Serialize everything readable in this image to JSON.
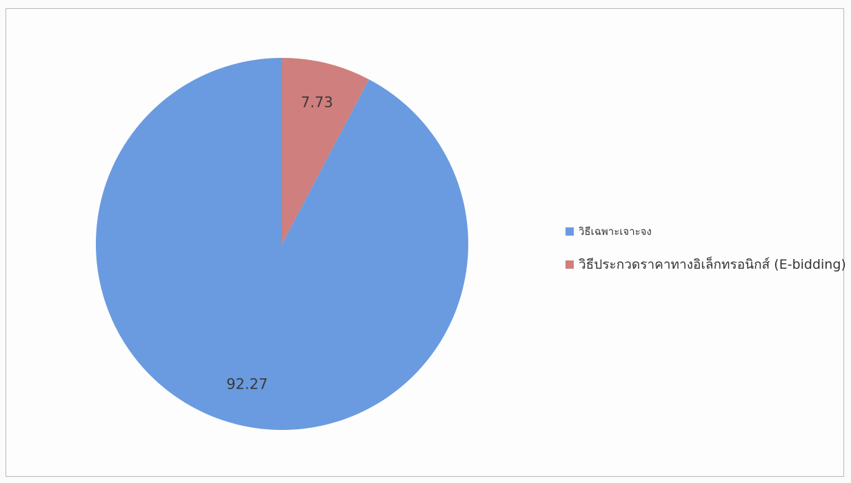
{
  "chart_data": {
    "type": "pie",
    "slices": [
      {
        "label": "วิธีเฉพาะเจาะจง",
        "value": 92.27,
        "color": "#6a9be0"
      },
      {
        "label": "วิธีประกวดราคาทางอิเล็กทรอนิกส์ (E-bidding)",
        "value": 7.73,
        "color": "#cf7f7d"
      }
    ],
    "start_angle_deg": 0,
    "direction": "counter-clockwise",
    "legend_position": "right"
  }
}
